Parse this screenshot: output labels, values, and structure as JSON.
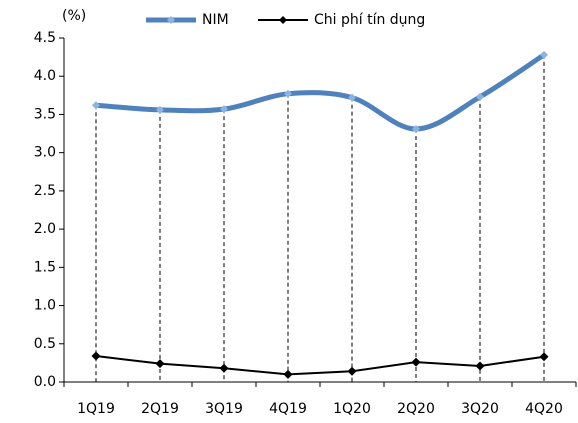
{
  "chart_data": {
    "type": "line",
    "y_label": "(%)",
    "categories": [
      "1Q19",
      "2Q19",
      "3Q19",
      "4Q19",
      "1Q20",
      "2Q20",
      "3Q20",
      "4Q20"
    ],
    "series": [
      {
        "name": "NIM",
        "color": "#4f81bd",
        "values": [
          3.62,
          3.56,
          3.57,
          3.77,
          3.72,
          3.31,
          3.73,
          4.28
        ]
      },
      {
        "name": "Chi phí tín dụng",
        "color": "#000000",
        "values": [
          0.34,
          0.24,
          0.18,
          0.1,
          0.14,
          0.26,
          0.21,
          0.33
        ]
      }
    ],
    "ylim": [
      0,
      4.5
    ],
    "yticks": [
      {
        "value": 0,
        "label": "0.0"
      },
      0.5,
      {
        "value": 1,
        "label": "1.0"
      },
      1.5,
      {
        "value": 2,
        "label": "2.0"
      },
      2.5,
      {
        "value": 3,
        "label": "3.0"
      },
      3.5,
      {
        "value": 4,
        "label": "4.0"
      },
      4.5
    ],
    "drop_lines": true
  }
}
